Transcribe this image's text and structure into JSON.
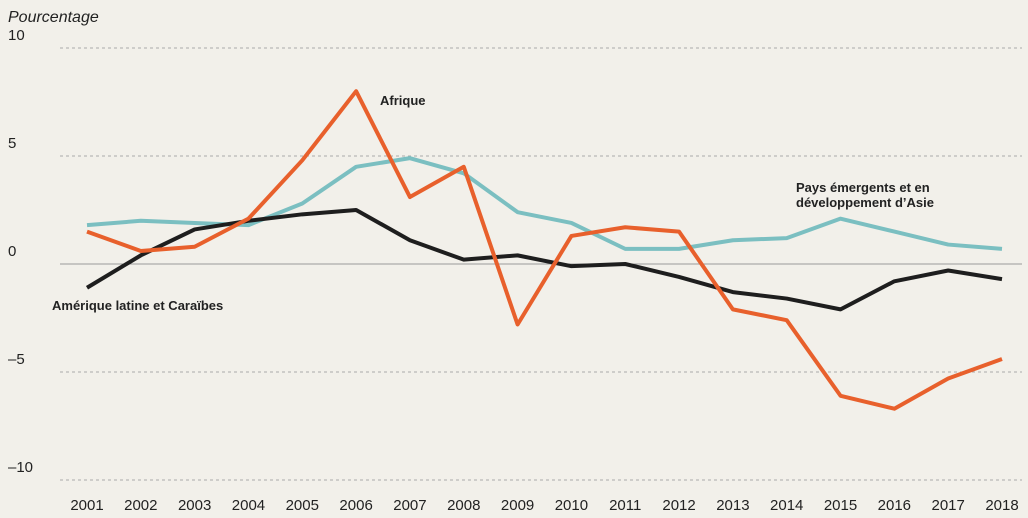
{
  "chart_data": {
    "type": "line",
    "y_axis_label": "Pourcentage",
    "categories": [
      "2001",
      "2002",
      "2003",
      "2004",
      "2005",
      "2006",
      "2007",
      "2008",
      "2009",
      "2010",
      "2011",
      "2012",
      "2013",
      "2014",
      "2015",
      "2016",
      "2017",
      "2018"
    ],
    "series": [
      {
        "name": "Pays émergents et en développement d’Asie",
        "color": "#7bbfc1",
        "values": [
          1.8,
          2.0,
          1.9,
          1.8,
          2.8,
          4.5,
          4.9,
          4.2,
          2.4,
          1.9,
          0.7,
          0.7,
          1.1,
          1.2,
          2.1,
          1.5,
          0.9,
          0.7
        ]
      },
      {
        "name": "Amérique latine et Caraïbes",
        "color": "#1e1e1e",
        "values": [
          -1.1,
          0.4,
          1.6,
          2.0,
          2.3,
          2.5,
          1.1,
          0.2,
          0.4,
          -0.1,
          0.0,
          -0.6,
          -1.3,
          -1.6,
          -2.1,
          -0.8,
          -0.3,
          -0.7
        ]
      },
      {
        "name": "Afrique",
        "color": "#e8602c",
        "values": [
          1.5,
          0.6,
          0.8,
          2.1,
          4.8,
          8.0,
          3.1,
          4.5,
          -2.8,
          1.3,
          1.7,
          1.5,
          -2.1,
          -2.6,
          -6.1,
          -6.7,
          -5.3,
          -4.4
        ]
      }
    ],
    "ylim": [
      -10,
      10
    ],
    "yticks": [
      {
        "value": -10,
        "label": "–10"
      },
      {
        "value": -5,
        "label": "–5"
      },
      0,
      5,
      10
    ],
    "grid": true
  }
}
